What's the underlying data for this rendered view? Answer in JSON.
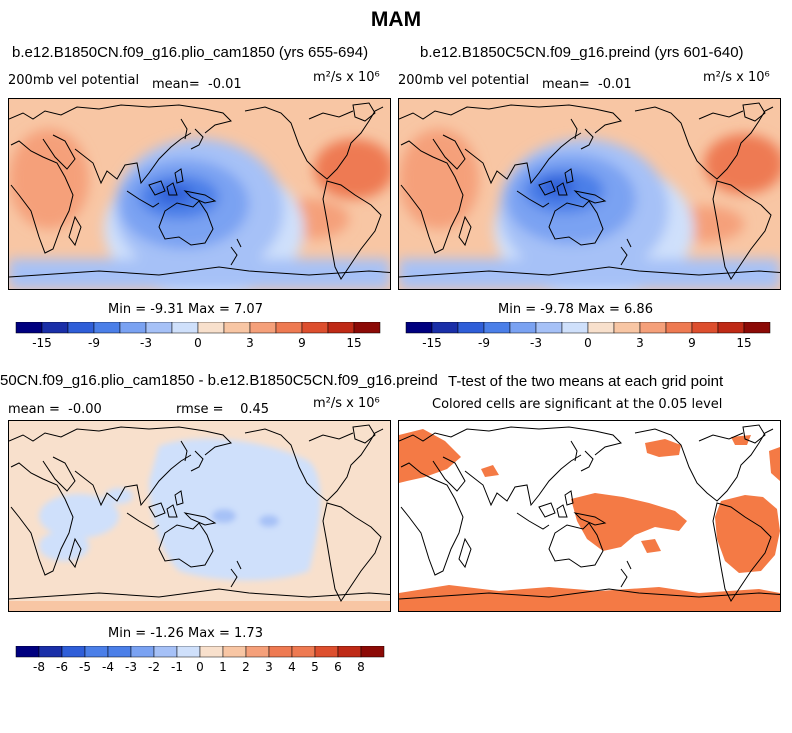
{
  "figure": {
    "title": "MAM",
    "units_label": "m²/s x 10⁶"
  },
  "panels": {
    "p1": {
      "title": "b.e12.B1850CN.f09_g16.plio_cam1850 (yrs 655-694)",
      "variable": "200mb vel potential",
      "mean_label": "mean=",
      "mean_value": "-0.01",
      "stats": "Min =  -9.31 Max =   7.07"
    },
    "p2": {
      "title": "b.e12.B1850C5CN.f09_g16.preind (yrs 601-640)",
      "variable": "200mb vel potential",
      "mean_label": "mean=",
      "mean_value": "-0.01",
      "stats": "Min =  -9.78 Max =   6.86"
    },
    "p3": {
      "title": "50CN.f09_g16.plio_cam1850 - b.e12.B1850C5CN.f09_g16.preind",
      "mean_label": "mean =",
      "mean_value": "-0.00",
      "rmse_label": "rmse =",
      "rmse_value": "0.45",
      "stats": "Min =  -1.26 Max =   1.73"
    },
    "p4": {
      "title": "T-test of the two means at each grid point",
      "subtitle": "Colored cells are significant at the 0.05 level"
    }
  },
  "colors": {
    "scale": [
      "#00007f",
      "#1a2fa8",
      "#2f5ed8",
      "#4b7fe8",
      "#7aa2f2",
      "#a6c1f7",
      "#cfe0fb",
      "#f8e0cc",
      "#f8c6a4",
      "#f5a07a",
      "#ee7a52",
      "#dd4f2e",
      "#bf2a16",
      "#8c0a06"
    ],
    "significant": "#f47a45"
  },
  "chart_data": [
    {
      "type": "heatmap",
      "name": "plio_cam1850 200mb velocity potential",
      "colorbar_ticks": [
        "-15",
        "-9",
        "-3",
        "0",
        "3",
        "9",
        "15"
      ],
      "min": -9.31,
      "max": 7.07,
      "mean": -0.01
    },
    {
      "type": "heatmap",
      "name": "preind 200mb velocity potential",
      "colorbar_ticks": [
        "-15",
        "-9",
        "-3",
        "0",
        "3",
        "9",
        "15"
      ],
      "min": -9.78,
      "max": 6.86,
      "mean": -0.01
    },
    {
      "type": "heatmap",
      "name": "difference",
      "colorbar_ticks": [
        "-8",
        "-6",
        "-5",
        "-4",
        "-3",
        "-2",
        "-1",
        "0",
        "1",
        "2",
        "3",
        "4",
        "5",
        "6",
        "8"
      ],
      "min": -1.26,
      "max": 1.73,
      "mean": -0.0,
      "rmse": 0.45
    },
    {
      "type": "heatmap",
      "name": "t-test significance",
      "significance_level": 0.05
    }
  ]
}
